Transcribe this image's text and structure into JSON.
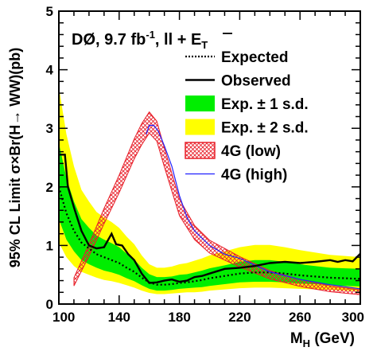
{
  "chart_data": {
    "type": "line",
    "title": "",
    "experiment_label": {
      "prefix": "DØ, 9.7 fb",
      "lumi_exp": "-1",
      "channel": ", ll + ",
      "met_symbol": "E",
      "met_sub": "T"
    },
    "ylabel_parts": {
      "lead": "95% CL Limit ",
      "sigma1": "σ",
      "times": "×",
      "text": "Br(H",
      "arrow": "→",
      "tail": " WW)(pb)"
    },
    "xlabel_parts": {
      "main": "M",
      "sub": "H",
      "unit": " (GeV)"
    },
    "xlim": [
      100,
      300
    ],
    "ylim": [
      0,
      5
    ],
    "x_ticks": [
      100,
      140,
      180,
      220,
      260,
      300
    ],
    "y_ticks": [
      0,
      1,
      2,
      3,
      4,
      5
    ],
    "legend_position": "top-right",
    "legend": [
      {
        "label": "Expected",
        "style": "dotted"
      },
      {
        "label": "Observed",
        "style": "solid"
      },
      {
        "label": "Exp. ± 1 s.d.",
        "style": "band1"
      },
      {
        "label": "Exp. ± 2 s.d.",
        "style": "band2"
      },
      {
        "label": "4G (low)",
        "style": "hatched"
      },
      {
        "label": "4G (high)",
        "style": "blue"
      }
    ],
    "colors": {
      "band1": "#00ee00",
      "band2": "#ffff00",
      "fourg_low": "#e8202a",
      "fourg_high": "#2020ff",
      "observed": "#000000",
      "expected": "#000000"
    },
    "series": [
      {
        "name": "Expected",
        "x": [
          100,
          105,
          110,
          115,
          120,
          125,
          130,
          135,
          140,
          145,
          150,
          155,
          160,
          165,
          170,
          175,
          180,
          185,
          190,
          195,
          200,
          210,
          220,
          230,
          240,
          250,
          260,
          270,
          280,
          290,
          300
        ],
        "values": [
          2.0,
          1.55,
          1.25,
          1.05,
          0.95,
          0.85,
          0.8,
          0.75,
          0.7,
          0.62,
          0.55,
          0.45,
          0.37,
          0.33,
          0.33,
          0.34,
          0.36,
          0.37,
          0.39,
          0.41,
          0.44,
          0.48,
          0.52,
          0.54,
          0.54,
          0.52,
          0.49,
          0.47,
          0.45,
          0.44,
          0.43
        ]
      },
      {
        "name": "Exp. ± 1 s.d.",
        "x": [
          100,
          105,
          110,
          115,
          120,
          125,
          130,
          135,
          140,
          145,
          150,
          155,
          160,
          165,
          170,
          175,
          180,
          185,
          190,
          195,
          200,
          210,
          220,
          230,
          240,
          250,
          260,
          270,
          280,
          290,
          300
        ],
        "low": [
          1.45,
          1.1,
          0.9,
          0.75,
          0.68,
          0.62,
          0.57,
          0.54,
          0.5,
          0.44,
          0.39,
          0.32,
          0.26,
          0.23,
          0.23,
          0.24,
          0.26,
          0.27,
          0.28,
          0.29,
          0.31,
          0.34,
          0.37,
          0.38,
          0.38,
          0.37,
          0.35,
          0.34,
          0.32,
          0.31,
          0.3
        ],
        "high": [
          2.75,
          2.15,
          1.75,
          1.45,
          1.3,
          1.17,
          1.1,
          1.04,
          0.97,
          0.86,
          0.76,
          0.62,
          0.51,
          0.46,
          0.46,
          0.47,
          0.5,
          0.51,
          0.54,
          0.57,
          0.61,
          0.66,
          0.72,
          0.75,
          0.75,
          0.72,
          0.68,
          0.65,
          0.62,
          0.61,
          0.6
        ]
      },
      {
        "name": "Exp. ± 2 s.d.",
        "x": [
          100,
          105,
          110,
          115,
          120,
          125,
          130,
          135,
          140,
          145,
          150,
          155,
          160,
          165,
          170,
          175,
          180,
          185,
          190,
          195,
          200,
          210,
          220,
          230,
          240,
          250,
          260,
          270,
          280,
          290,
          300
        ],
        "low": [
          1.05,
          0.8,
          0.65,
          0.55,
          0.5,
          0.45,
          0.41,
          0.39,
          0.36,
          0.32,
          0.28,
          0.23,
          0.19,
          0.17,
          0.17,
          0.18,
          0.19,
          0.2,
          0.2,
          0.21,
          0.23,
          0.25,
          0.27,
          0.28,
          0.28,
          0.27,
          0.26,
          0.25,
          0.24,
          0.23,
          0.22
        ],
        "high": [
          3.7,
          2.9,
          2.35,
          1.95,
          1.75,
          1.57,
          1.48,
          1.4,
          1.3,
          1.15,
          1.02,
          0.83,
          0.68,
          0.62,
          0.62,
          0.64,
          0.68,
          0.7,
          0.74,
          0.78,
          0.83,
          0.9,
          0.97,
          1.01,
          1.01,
          0.97,
          0.92,
          0.88,
          0.84,
          0.82,
          0.8
        ]
      },
      {
        "name": "Observed",
        "x": [
          100,
          104,
          106,
          110,
          115,
          120,
          125,
          130,
          135,
          138,
          142,
          146,
          150,
          155,
          160,
          165,
          170,
          175,
          180,
          185,
          190,
          195,
          200,
          210,
          220,
          230,
          240,
          250,
          260,
          270,
          280,
          285,
          290,
          295,
          300
        ],
        "values": [
          2.55,
          2.55,
          2.0,
          1.65,
          1.25,
          1.0,
          0.95,
          0.97,
          1.2,
          1.02,
          1.0,
          0.85,
          0.75,
          0.52,
          0.36,
          0.37,
          0.4,
          0.42,
          0.38,
          0.4,
          0.46,
          0.48,
          0.52,
          0.6,
          0.62,
          0.65,
          0.7,
          0.72,
          0.7,
          0.72,
          0.75,
          0.72,
          0.75,
          0.73,
          0.86
        ]
      },
      {
        "name": "4G (low)",
        "x": [
          110,
          120,
          130,
          140,
          150,
          155,
          160,
          165,
          170,
          180,
          190,
          200,
          220,
          240,
          260,
          280,
          300
        ],
        "values": [
          0.38,
          0.92,
          1.5,
          2.05,
          2.65,
          2.9,
          3.1,
          2.95,
          2.5,
          1.65,
          1.22,
          0.98,
          0.72,
          0.5,
          0.36,
          0.26,
          0.2
        ],
        "halfwidth": [
          0.07,
          0.1,
          0.13,
          0.15,
          0.17,
          0.18,
          0.18,
          0.17,
          0.16,
          0.14,
          0.12,
          0.11,
          0.09,
          0.07,
          0.06,
          0.05,
          0.04
        ]
      },
      {
        "name": "4G (high)",
        "x": [
          158,
          160,
          163,
          166,
          170,
          175,
          180,
          185,
          190,
          200,
          210,
          220,
          240,
          260,
          280,
          300
        ],
        "values": [
          2.9,
          3.05,
          3.05,
          2.95,
          2.7,
          2.35,
          1.85,
          1.48,
          1.25,
          1.0,
          0.85,
          0.78,
          0.55,
          0.42,
          0.33,
          0.26
        ]
      }
    ]
  }
}
